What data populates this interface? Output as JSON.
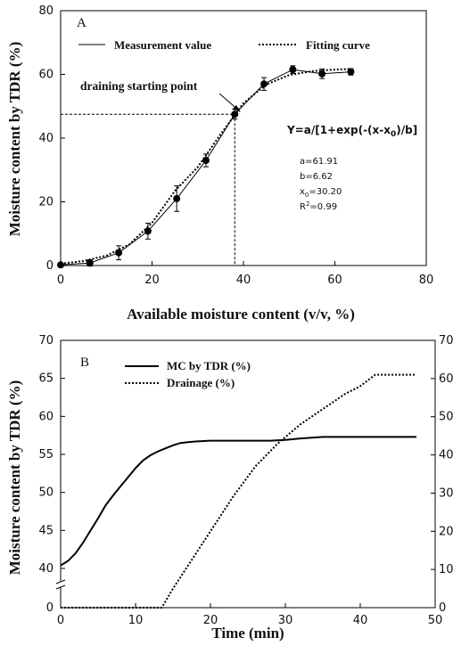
{
  "chart_data": [
    {
      "panel": "A",
      "type": "scatter",
      "xlabel": "Available moisture content (v/v, %)",
      "ylabel": "Moisture content by TDR (%)",
      "xlim": [
        0,
        80
      ],
      "ylim": [
        0,
        80
      ],
      "x_ticks": [
        "0",
        "20",
        "40",
        "60",
        "80"
      ],
      "y_ticks": [
        "0",
        "20",
        "40",
        "60",
        "80"
      ],
      "grid": false,
      "legend_position": "top",
      "series": [
        {
          "name": "Measurement value",
          "style": "solid-line-with-markers",
          "color": "#000000",
          "x": [
            0.0,
            6.4,
            12.7,
            19.1,
            25.4,
            31.8,
            38.1,
            44.5,
            50.8,
            57.2,
            63.5
          ],
          "y": [
            0.2,
            0.8,
            4.0,
            10.8,
            21.0,
            33.0,
            47.5,
            57.0,
            61.5,
            60.2,
            60.8
          ],
          "error": [
            0.5,
            1.0,
            2.2,
            2.5,
            4.0,
            2.0,
            1.5,
            2.0,
            1.2,
            1.5,
            1.0
          ]
        },
        {
          "name": "Fitting curve",
          "style": "dotted-line",
          "color": "#000000",
          "x": [
            0,
            5,
            10,
            15,
            20,
            25,
            30,
            35,
            40,
            45,
            50,
            55,
            60,
            63.5
          ],
          "y": [
            0.6,
            1.4,
            3.1,
            6.6,
            13.4,
            23.4,
            30.9,
            41.2,
            51.0,
            56.8,
            59.8,
            61.0,
            61.5,
            61.7
          ]
        }
      ],
      "annotations": {
        "start_point_label": "draining starting point",
        "start_point": {
          "x": 38.1,
          "y": 47.5
        },
        "equation": "Y=a/[1+exp(-(x-x",
        "equation_sub": "0",
        "equation_end": ")/b]",
        "params": [
          {
            "name": "a",
            "sub": "",
            "sup": "",
            "text": "=61.91"
          },
          {
            "name": "b",
            "sub": "",
            "sup": "",
            "text": "=6.62"
          },
          {
            "name": "x",
            "sub": "0",
            "sup": "",
            "text": "=30.20"
          },
          {
            "name": "R",
            "sub": "",
            "sup": "2",
            "text": "=0.99"
          }
        ]
      }
    },
    {
      "panel": "B",
      "type": "line",
      "xlabel": "Time (min)",
      "ylabel": "Moisture content by TDR (%)",
      "xlim": [
        0,
        50
      ],
      "ylim_left": [
        0,
        70
      ],
      "left_axis_break": [
        0,
        40
      ],
      "ylim_right": [
        0,
        70
      ],
      "x_ticks": [
        "0",
        "10",
        "20",
        "30",
        "40",
        "50"
      ],
      "y_ticks_left": [
        "0",
        "40",
        "45",
        "50",
        "55",
        "60",
        "65",
        "70"
      ],
      "y_ticks_right": [
        "0",
        "10",
        "20",
        "30",
        "40",
        "50",
        "60",
        "70"
      ],
      "grid": false,
      "legend_position": "top-left",
      "series": [
        {
          "name": "MC by TDR (%)",
          "style": "solid",
          "axis": "left",
          "color": "#000000",
          "x": [
            0,
            1,
            2,
            3,
            4,
            5,
            6,
            7,
            8,
            9,
            10,
            11,
            12,
            13,
            14,
            15,
            16,
            17,
            18,
            20,
            22,
            25,
            28,
            30,
            32,
            35,
            38,
            40,
            44,
            47.5
          ],
          "y": [
            40.4,
            41.0,
            42.0,
            43.4,
            45.0,
            46.6,
            48.3,
            49.6,
            50.8,
            52.0,
            53.2,
            54.2,
            54.9,
            55.4,
            55.8,
            56.2,
            56.5,
            56.6,
            56.7,
            56.8,
            56.8,
            56.8,
            56.8,
            56.9,
            57.1,
            57.3,
            57.3,
            57.3,
            57.3,
            57.3
          ]
        },
        {
          "name": "Drainage (%)",
          "style": "dotted",
          "axis": "right",
          "color": "#000000",
          "x": [
            0,
            5,
            10,
            13.5,
            15,
            17,
            20,
            23,
            26,
            29,
            32,
            35,
            38,
            40,
            42,
            44,
            47.5
          ],
          "y": [
            0,
            0,
            0,
            0,
            5,
            11,
            20,
            29,
            37,
            43,
            48,
            52,
            56,
            58,
            61,
            61,
            61
          ]
        }
      ]
    }
  ]
}
